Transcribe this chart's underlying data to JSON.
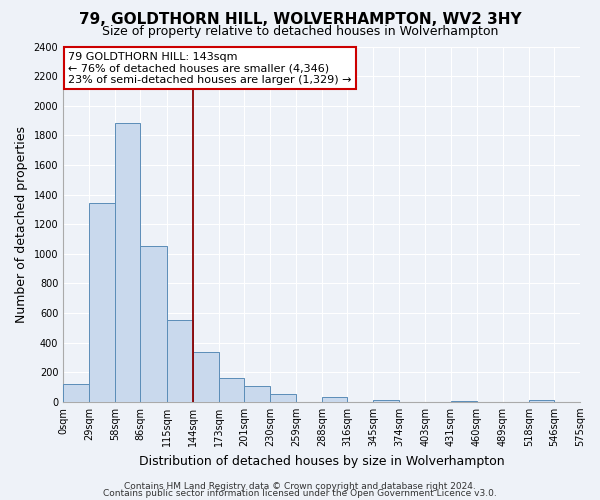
{
  "title": "79, GOLDTHORN HILL, WOLVERHAMPTON, WV2 3HY",
  "subtitle": "Size of property relative to detached houses in Wolverhampton",
  "xlabel": "Distribution of detached houses by size in Wolverhampton",
  "ylabel": "Number of detached properties",
  "bin_edges": [
    0,
    29,
    58,
    86,
    115,
    144,
    173,
    201,
    230,
    259,
    288,
    316,
    345,
    374,
    403,
    431,
    460,
    489,
    518,
    546,
    575
  ],
  "bin_labels": [
    "0sqm",
    "29sqm",
    "58sqm",
    "86sqm",
    "115sqm",
    "144sqm",
    "173sqm",
    "201sqm",
    "230sqm",
    "259sqm",
    "288sqm",
    "316sqm",
    "345sqm",
    "374sqm",
    "403sqm",
    "431sqm",
    "460sqm",
    "489sqm",
    "518sqm",
    "546sqm",
    "575sqm"
  ],
  "bar_heights": [
    120,
    1340,
    1880,
    1050,
    550,
    335,
    160,
    105,
    55,
    0,
    30,
    0,
    15,
    0,
    0,
    5,
    0,
    0,
    15,
    0
  ],
  "bar_color": "#c9d9ed",
  "bar_edge_color": "#5b8db8",
  "reference_line_x": 144,
  "reference_line_color": "#8b0000",
  "annotation_line1": "79 GOLDTHORN HILL: 143sqm",
  "annotation_line2": "← 76% of detached houses are smaller (4,346)",
  "annotation_line3": "23% of semi-detached houses are larger (1,329) →",
  "annotation_box_color": "white",
  "annotation_box_edge_color": "#cc0000",
  "ylim": [
    0,
    2400
  ],
  "yticks": [
    0,
    200,
    400,
    600,
    800,
    1000,
    1200,
    1400,
    1600,
    1800,
    2000,
    2200,
    2400
  ],
  "footnote1": "Contains HM Land Registry data © Crown copyright and database right 2024.",
  "footnote2": "Contains public sector information licensed under the Open Government Licence v3.0.",
  "bg_color": "#eef2f8",
  "plot_bg_color": "#eef2f8",
  "grid_color": "white",
  "title_fontsize": 11,
  "subtitle_fontsize": 9,
  "axis_label_fontsize": 9,
  "tick_fontsize": 7,
  "annotation_fontsize": 8,
  "footnote_fontsize": 6.5
}
